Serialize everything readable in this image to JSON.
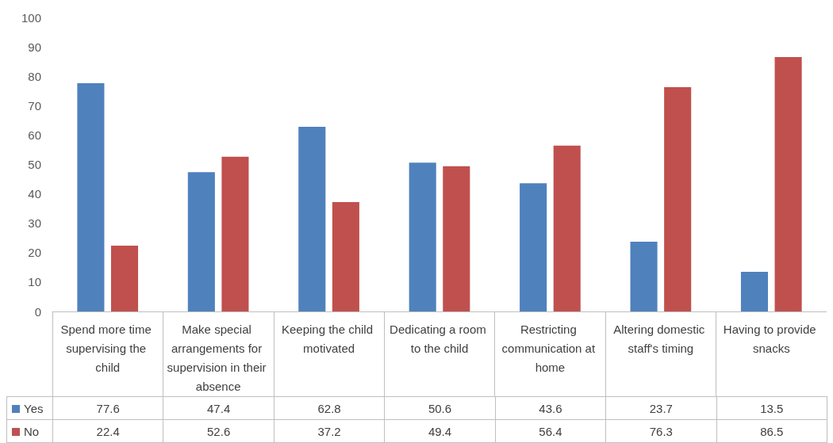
{
  "chart_data": {
    "type": "bar",
    "categories": [
      "Spend more time supervising the child",
      "Make special arrangements for supervision in their absence",
      "Keeping the child motivated",
      "Dedicating a room to the child",
      "Restricting communication at home",
      "Altering domestic staff's timing",
      "Having to provide snacks"
    ],
    "series": [
      {
        "name": "Yes",
        "color": "#4f81bd",
        "values": [
          77.6,
          47.4,
          62.8,
          50.6,
          43.6,
          23.7,
          13.5
        ]
      },
      {
        "name": "No",
        "color": "#c0504d",
        "values": [
          22.4,
          52.6,
          37.2,
          49.4,
          56.4,
          76.3,
          86.5
        ]
      }
    ],
    "ylim": [
      0,
      100
    ],
    "yticks": [
      0,
      10,
      20,
      30,
      40,
      50,
      60,
      70,
      80,
      90,
      100
    ],
    "grid": false,
    "legend": "bottom left",
    "data_labels": true
  }
}
